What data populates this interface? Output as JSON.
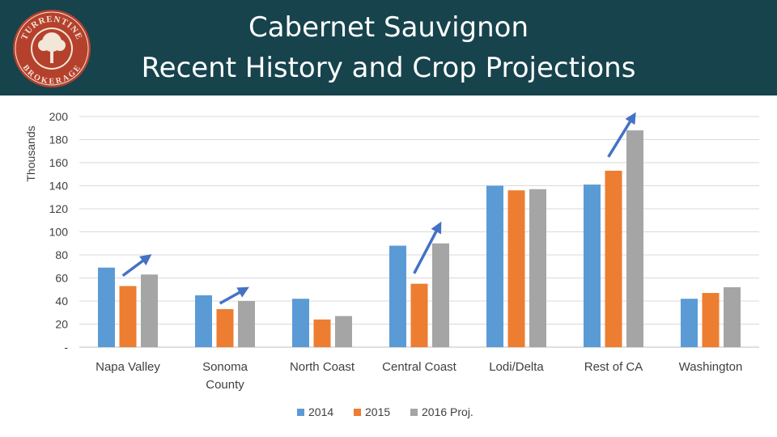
{
  "header": {
    "title_line1": "Cabernet Sauvignon",
    "title_line2": "Recent History and Crop Projections",
    "logo_text_top": "TURRENTINE",
    "logo_text_bottom": "BROKERAGE"
  },
  "colors": {
    "header_bg": "#17434d",
    "series_2014": "#5b9bd5",
    "series_2015": "#ed7d31",
    "series_2016": "#a5a5a5",
    "arrow": "#4472c4",
    "logo_ring": "#b5412d"
  },
  "chart_data": {
    "type": "bar",
    "ylabel": "Thousands",
    "ylim": [
      0,
      200
    ],
    "yticks": [
      0,
      20,
      40,
      60,
      80,
      100,
      120,
      140,
      160,
      180,
      200
    ],
    "ytick_labels": [
      "-",
      "20",
      "40",
      "60",
      "80",
      "100",
      "120",
      "140",
      "160",
      "180",
      "200"
    ],
    "categories": [
      [
        "Napa Valley"
      ],
      [
        "Sonoma",
        "County"
      ],
      [
        "North Coast"
      ],
      [
        "Central Coast"
      ],
      [
        "Lodi/Delta"
      ],
      [
        "Rest of CA"
      ],
      [
        "Washington"
      ]
    ],
    "series": [
      {
        "name": "2014",
        "values": [
          69,
          45,
          42,
          88,
          140,
          141,
          42
        ]
      },
      {
        "name": "2015",
        "values": [
          53,
          33,
          24,
          55,
          136,
          153,
          47
        ]
      },
      {
        "name": "2016 Proj.",
        "values": [
          63,
          40,
          27,
          90,
          137,
          188,
          52
        ]
      }
    ],
    "grid": true,
    "legend_position": "bottom",
    "annotations": [
      {
        "type": "arrow",
        "category_index": 0,
        "from_value": 62,
        "to_value": 78
      },
      {
        "type": "arrow",
        "category_index": 1,
        "from_value": 38,
        "to_value": 50
      },
      {
        "type": "arrow",
        "category_index": 3,
        "from_value": 64,
        "to_value": 105
      },
      {
        "type": "arrow",
        "category_index": 5,
        "from_value": 165,
        "to_value": 200
      }
    ]
  }
}
